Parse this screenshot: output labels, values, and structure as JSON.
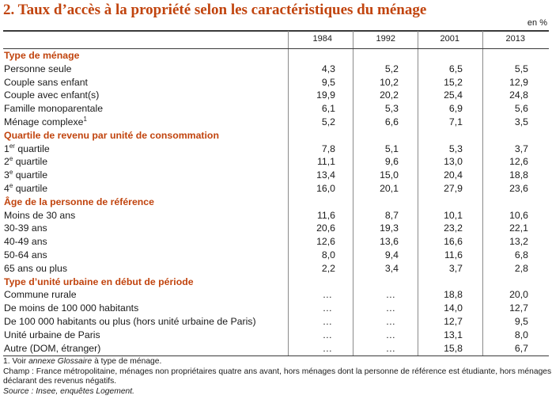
{
  "title": "2. Taux d’accès à la propriété selon les caractéristiques du ménage",
  "unit": "en %",
  "columns": [
    "1984",
    "1992",
    "2001",
    "2013"
  ],
  "rows": [
    {
      "type": "section",
      "label": "Type de ménage"
    },
    {
      "label": "Personne seule",
      "values": [
        "4,3",
        "5,2",
        "6,5",
        "5,5"
      ]
    },
    {
      "label": "Couple sans enfant",
      "values": [
        "9,5",
        "10,2",
        "15,2",
        "12,9"
      ]
    },
    {
      "label": "Couple avec enfant(s)",
      "values": [
        "19,9",
        "20,2",
        "25,4",
        "24,8"
      ]
    },
    {
      "label": "Famille monoparentale",
      "values": [
        "6,1",
        "5,3",
        "6,9",
        "5,6"
      ]
    },
    {
      "label": "Ménage complexe",
      "sup": "1",
      "values": [
        "5,2",
        "6,6",
        "7,1",
        "3,5"
      ]
    },
    {
      "type": "section",
      "label": "Quartile de revenu par unité de consommation"
    },
    {
      "label": "quartile",
      "prefix": "1",
      "sup": "er",
      "values": [
        "7,8",
        "5,1",
        "5,3",
        "3,7"
      ]
    },
    {
      "label": "quartile",
      "prefix": "2",
      "sup": "e",
      "values": [
        "11,1",
        "9,6",
        "13,0",
        "12,6"
      ]
    },
    {
      "label": "quartile",
      "prefix": "3",
      "sup": "e",
      "values": [
        "13,4",
        "15,0",
        "20,4",
        "18,8"
      ]
    },
    {
      "label": "quartile",
      "prefix": "4",
      "sup": "e",
      "values": [
        "16,0",
        "20,1",
        "27,9",
        "23,6"
      ]
    },
    {
      "type": "section",
      "label": "Âge de la personne de référence"
    },
    {
      "label": "Moins de 30 ans",
      "values": [
        "11,6",
        "8,7",
        "10,1",
        "10,6"
      ]
    },
    {
      "label": "30-39 ans",
      "values": [
        "20,6",
        "19,3",
        "23,2",
        "22,1"
      ]
    },
    {
      "label": "40-49 ans",
      "values": [
        "12,6",
        "13,6",
        "16,6",
        "13,2"
      ]
    },
    {
      "label": "50-64 ans",
      "values": [
        "8,0",
        "9,4",
        "11,6",
        "6,8"
      ]
    },
    {
      "label": "65 ans ou plus",
      "values": [
        "2,2",
        "3,4",
        "3,7",
        "2,8"
      ]
    },
    {
      "type": "section",
      "label": "Type d’unité urbaine en début de période"
    },
    {
      "label": "Commune rurale",
      "values": [
        "…",
        "…",
        "18,8",
        "20,0"
      ]
    },
    {
      "label": "De moins de 100 000 habitants",
      "values": [
        "…",
        "…",
        "14,0",
        "12,7"
      ]
    },
    {
      "label": "De 100 000 habitants ou plus (hors unité urbaine de Paris)",
      "values": [
        "…",
        "…",
        "12,7",
        "9,5"
      ]
    },
    {
      "label": "Unité urbaine de Paris",
      "values": [
        "…",
        "…",
        "13,1",
        "8,0"
      ]
    },
    {
      "label": "Autre (DOM, étranger)",
      "values": [
        "…",
        "…",
        "15,8",
        "6,7"
      ]
    }
  ],
  "notes": {
    "note1_prefix": "1. Voir ",
    "note1_italic": "annexe Glossaire",
    "note1_suffix": " à type de ménage.",
    "champ_line1": "Champ : France métropolitaine, ménages non propriétaires quatre ans avant, hors ménages dont la personne de référence est étudiante, hors ménages",
    "champ_line2": "déclarant des revenus négatifs.",
    "source": "Source : Insee, enquêtes Logement."
  },
  "colors": {
    "accent": "#c1440e",
    "text": "#1a1a1a"
  }
}
